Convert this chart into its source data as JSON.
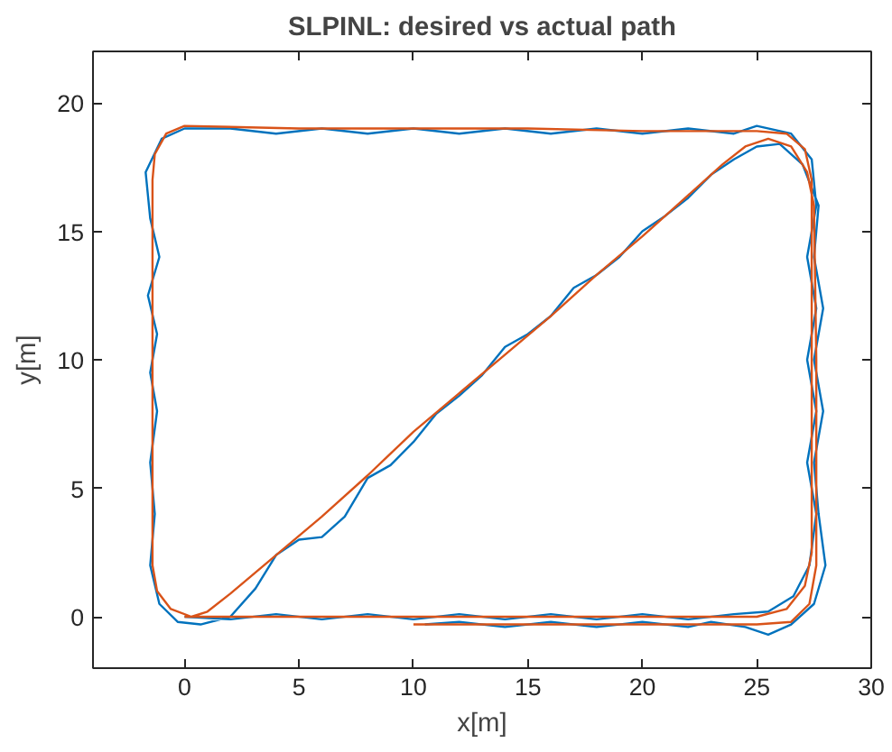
{
  "chart_data": {
    "type": "line",
    "title": "SLPINL: desired vs actual path",
    "xlabel": "x[m]",
    "ylabel": "y[m]",
    "xlim": [
      -4,
      30
    ],
    "ylim": [
      -2,
      22
    ],
    "xticks": [
      0,
      5,
      10,
      15,
      20,
      25,
      30
    ],
    "yticks": [
      0,
      5,
      10,
      15,
      20
    ],
    "grid": false,
    "line_style": "solid",
    "series": [
      {
        "color": "#0072bd",
        "x": [
          0,
          2,
          4,
          6,
          8,
          10,
          12,
          14,
          16,
          18,
          20,
          22,
          24,
          25.5,
          26.6,
          27.3,
          27.6,
          27.2,
          27.6,
          27.2,
          27.6,
          27.2,
          27.6,
          27.4,
          26.5,
          25,
          24,
          22,
          20,
          18,
          16,
          14,
          12,
          10,
          8,
          6,
          4,
          2,
          0,
          -1,
          -1.7,
          -1.5,
          -1.1,
          -1.6,
          -1.2,
          -1.5,
          -1.2,
          -1.5,
          -1.3,
          -1.5,
          -1.1,
          -0.3,
          0.7,
          2,
          3.1,
          4,
          5,
          6,
          7,
          8,
          9,
          10,
          11,
          12,
          13,
          14,
          15,
          16,
          17,
          18,
          19,
          20,
          21,
          22,
          23,
          24,
          25,
          26,
          27,
          27.7,
          27.5,
          27.9,
          27.5,
          27.9,
          27.5,
          27.7,
          28,
          27.5,
          26.5,
          25.5,
          24.5,
          23,
          22,
          20,
          18,
          16,
          14,
          12,
          10.5
        ],
        "values": [
          0,
          -0.1,
          0.1,
          -0.1,
          0.1,
          -0.1,
          0.1,
          -0.1,
          0.1,
          -0.1,
          0.1,
          -0.1,
          0.1,
          0.2,
          0.8,
          2,
          4,
          6,
          8,
          10,
          12,
          14,
          16,
          17.8,
          18.8,
          19.1,
          18.8,
          19,
          18.8,
          19,
          18.8,
          19,
          18.8,
          19,
          18.8,
          19,
          18.8,
          19,
          19,
          18.6,
          17.3,
          15.5,
          14,
          12.5,
          11,
          9.5,
          8,
          6,
          4,
          2,
          0.5,
          -0.2,
          -0.3,
          0,
          1.1,
          2.4,
          3,
          3.1,
          3.9,
          5.4,
          5.9,
          6.8,
          7.9,
          8.6,
          9.4,
          10.5,
          11,
          11.7,
          12.8,
          13.3,
          14,
          15,
          15.6,
          16.3,
          17.2,
          17.8,
          18.3,
          18.4,
          17.6,
          16,
          14,
          12,
          10,
          8,
          6,
          4,
          2,
          0.5,
          -0.3,
          -0.7,
          -0.4,
          -0.2,
          -0.4,
          -0.2,
          -0.4,
          -0.2,
          -0.4,
          -0.2,
          -0.3
        ]
      },
      {
        "color": "#d95319",
        "x": [
          0,
          5,
          10,
          15,
          20,
          25,
          26.3,
          27.1,
          27.4,
          27.4,
          27.4,
          27.1,
          26.3,
          25,
          20,
          15,
          10,
          5,
          0,
          -0.8,
          -1.3,
          -1.4,
          -1.4,
          -1.4,
          -1.2,
          -0.6,
          0.3,
          1,
          2,
          4,
          6,
          8,
          10,
          12,
          14,
          16,
          18,
          20,
          22,
          23.5,
          24.5,
          25.5,
          26.5,
          27.2,
          27.5,
          27.6,
          27.6,
          27.3,
          26.5,
          25,
          20,
          15,
          10
        ],
        "values": [
          0,
          0,
          0,
          0,
          0,
          0,
          0.3,
          1.2,
          2.5,
          10,
          17,
          18.2,
          18.8,
          18.9,
          18.9,
          19,
          19,
          19,
          19.1,
          18.8,
          18,
          17,
          10,
          2,
          1,
          0.3,
          0,
          0.2,
          0.9,
          2.4,
          3.9,
          5.5,
          7.2,
          8.7,
          10.2,
          11.7,
          13.3,
          14.8,
          16.4,
          17.6,
          18.3,
          18.6,
          18.3,
          17.3,
          16,
          10,
          2,
          0.5,
          -0.2,
          -0.3,
          -0.3,
          -0.3,
          -0.3
        ]
      }
    ]
  }
}
